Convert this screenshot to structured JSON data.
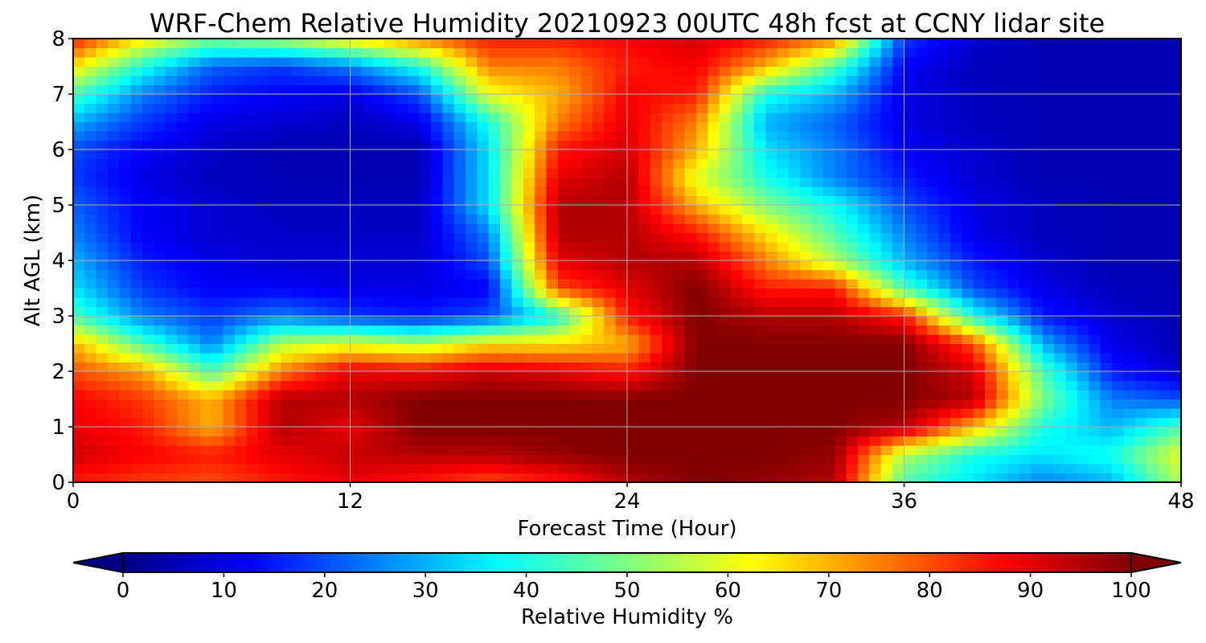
{
  "chart_data": {
    "type": "heatmap",
    "title": "WRF-Chem Relative Humidity 20210923 00UTC 48h fcst at CCNY lidar site",
    "xlabel": "Forecast Time (Hour)",
    "ylabel": "Alt AGL (km)",
    "xlim": [
      0,
      48
    ],
    "ylim": [
      0,
      8
    ],
    "xticks": [
      0,
      12,
      24,
      36,
      48
    ],
    "yticks": [
      0,
      1,
      2,
      3,
      4,
      5,
      6,
      7,
      8
    ],
    "grid": true,
    "colormap": "jet",
    "colorbar": {
      "label": "Relative Humidity %",
      "min": 0,
      "max": 100,
      "ticks": [
        0,
        10,
        20,
        30,
        40,
        50,
        60,
        70,
        80,
        90,
        100
      ],
      "extend": "both"
    },
    "x": [
      0,
      3,
      6,
      9,
      12,
      15,
      18,
      21,
      24,
      27,
      30,
      33,
      36,
      39,
      42,
      45,
      48
    ],
    "y": [
      0,
      0.5,
      1,
      1.5,
      2,
      2.5,
      3,
      3.5,
      4,
      4.5,
      5,
      5.5,
      6,
      6.5,
      7,
      7.5,
      8
    ],
    "z": [
      [
        85,
        82,
        80,
        85,
        90,
        85,
        80,
        85,
        95,
        100,
        98,
        95,
        45,
        35,
        25,
        30,
        55
      ],
      [
        92,
        88,
        85,
        90,
        93,
        95,
        95,
        98,
        100,
        100,
        100,
        98,
        55,
        40,
        35,
        40,
        60
      ],
      [
        90,
        85,
        70,
        95,
        90,
        100,
        100,
        100,
        100,
        100,
        100,
        100,
        95,
        70,
        40,
        30,
        45
      ],
      [
        88,
        82,
        70,
        95,
        95,
        100,
        100,
        100,
        100,
        100,
        100,
        100,
        100,
        95,
        50,
        25,
        20
      ],
      [
        80,
        72,
        45,
        75,
        90,
        88,
        93,
        90,
        85,
        100,
        100,
        100,
        100,
        92,
        45,
        15,
        8
      ],
      [
        70,
        45,
        25,
        55,
        60,
        55,
        65,
        65,
        70,
        100,
        100,
        100,
        100,
        80,
        30,
        10,
        5
      ],
      [
        45,
        25,
        18,
        25,
        18,
        15,
        20,
        40,
        85,
        100,
        95,
        95,
        85,
        40,
        15,
        8,
        5
      ],
      [
        35,
        18,
        12,
        12,
        10,
        10,
        12,
        80,
        90,
        100,
        85,
        85,
        45,
        20,
        10,
        6,
        5
      ],
      [
        30,
        15,
        10,
        8,
        8,
        8,
        20,
        90,
        95,
        95,
        75,
        55,
        30,
        15,
        8,
        5,
        5
      ],
      [
        25,
        12,
        8,
        7,
        7,
        7,
        25,
        95,
        95,
        85,
        65,
        45,
        25,
        10,
        6,
        5,
        5
      ],
      [
        22,
        12,
        8,
        6,
        6,
        6,
        35,
        95,
        95,
        70,
        50,
        38,
        20,
        10,
        6,
        5,
        5
      ],
      [
        18,
        10,
        6,
        5,
        5,
        5,
        35,
        90,
        95,
        60,
        40,
        25,
        15,
        8,
        5,
        5,
        5
      ],
      [
        20,
        12,
        7,
        5,
        5,
        5,
        35,
        85,
        92,
        70,
        35,
        25,
        12,
        8,
        5,
        5,
        5
      ],
      [
        30,
        18,
        10,
        8,
        6,
        10,
        40,
        75,
        90,
        75,
        30,
        22,
        10,
        6,
        5,
        5,
        5
      ],
      [
        45,
        25,
        15,
        12,
        10,
        20,
        60,
        70,
        88,
        85,
        40,
        30,
        10,
        6,
        5,
        5,
        5
      ],
      [
        65,
        40,
        22,
        18,
        25,
        40,
        75,
        75,
        85,
        88,
        70,
        45,
        12,
        6,
        5,
        5,
        5
      ],
      [
        85,
        65,
        50,
        55,
        65,
        75,
        85,
        85,
        88,
        92,
        85,
        75,
        18,
        8,
        5,
        5,
        5
      ]
    ]
  }
}
